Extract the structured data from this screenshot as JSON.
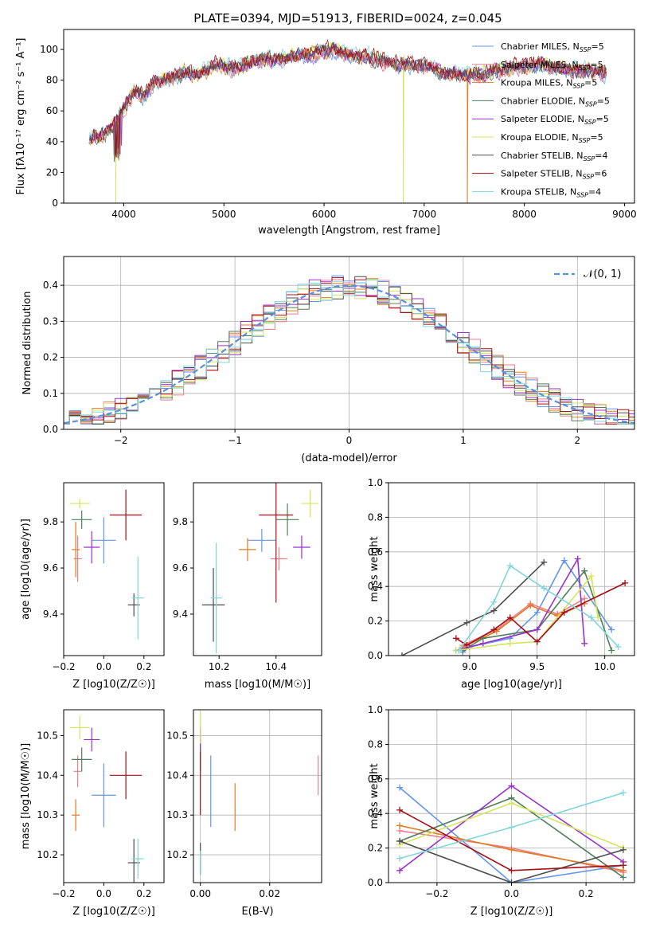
{
  "figure_title": "PLATE=0394, MJD=51913, FIBERID=0024, z=0.045",
  "colors": {
    "Chabrier MILES": "#6495ed",
    "Salpeter MILES": "#ef7d8a",
    "Kroupa MILES": "#e07b25",
    "Chabrier ELODIE": "#4f7f5a",
    "Salpeter ELODIE": "#9932cc",
    "Kroupa ELODIE": "#d6e45c",
    "Chabrier STELIB": "#4d4d4d",
    "Salpeter STELIB": "#a50f15",
    "Kroupa STELIB": "#7fd6dc",
    "normal": "#5b8fd9"
  },
  "chart_data": [
    {
      "id": "spectrum",
      "type": "line",
      "title": "PLATE=0394, MJD=51913, FIBERID=0024, z=0.045",
      "xlabel": "wavelength [Angstrom, rest frame]",
      "ylabel": "Flux [fλ10⁻¹⁷ erg cm⁻² s⁻¹ A⁻¹]",
      "xlim": [
        3400,
        9100
      ],
      "ylim": [
        0,
        113
      ],
      "xticks": [
        4000,
        5000,
        6000,
        7000,
        8000,
        9000
      ],
      "yticks": [
        0,
        20,
        40,
        60,
        80,
        100
      ],
      "legend_position": "upper-right",
      "legend": [
        {
          "name": "Chabrier MILES",
          "nssp": "5"
        },
        {
          "name": "Salpeter MILES",
          "nssp": "5"
        },
        {
          "name": "Kroupa MILES",
          "nssp": "5"
        },
        {
          "name": "Chabrier ELODIE",
          "nssp": "5"
        },
        {
          "name": "Salpeter ELODIE",
          "nssp": "5"
        },
        {
          "name": "Kroupa ELODIE",
          "nssp": "5"
        },
        {
          "name": "Chabrier STELIB",
          "nssp": "4"
        },
        {
          "name": "Salpeter STELIB",
          "nssp": "6"
        },
        {
          "name": "Kroupa STELIB",
          "nssp": "4"
        }
      ],
      "continuum": {
        "x": [
          3650,
          3750,
          3850,
          3950,
          4000,
          4100,
          4200,
          4300,
          4400,
          4500,
          4600,
          4700,
          4800,
          4900,
          5000,
          5100,
          5200,
          5300,
          5400,
          5500,
          5600,
          5700,
          5800,
          5900,
          6000,
          6100,
          6200,
          6300,
          6400,
          6500,
          6600,
          6700,
          6800,
          6900,
          7000,
          7100,
          7200,
          7300,
          7400,
          7500,
          7600,
          7700,
          7800,
          7900,
          8000,
          8100,
          8200,
          8300,
          8400,
          8500,
          8600,
          8700,
          8820
        ],
        "y": [
          44,
          43,
          48,
          55,
          62,
          72,
          70,
          78,
          80,
          82,
          85,
          84,
          85,
          90,
          89,
          88,
          90,
          92,
          94,
          93,
          94,
          96,
          96,
          97,
          99,
          99,
          98,
          96,
          95,
          94,
          92,
          90,
          91,
          89,
          89,
          88,
          84,
          85,
          83,
          84,
          83,
          86,
          87,
          88,
          89,
          90,
          89,
          88,
          88,
          87,
          86,
          86,
          85
        ]
      },
      "dropouts": [
        {
          "x": 3920,
          "series": "Kroupa ELODIE"
        },
        {
          "x": 6790,
          "series": "Kroupa ELODIE"
        },
        {
          "x": 7430,
          "series": "Kroupa MILES"
        }
      ]
    },
    {
      "id": "residuals",
      "type": "histogram",
      "xlabel": "(data-model)/error",
      "ylabel": "Normed distribution",
      "xlim": [
        -2.5,
        2.5
      ],
      "ylim": [
        0,
        0.48
      ],
      "xticks": [
        -2,
        -1,
        0,
        1,
        2
      ],
      "yticks": [
        0.0,
        0.1,
        0.2,
        0.3,
        0.4
      ],
      "grid": true,
      "legend_position": "upper-right",
      "reference_label": "𝒩(0, 1)",
      "bin_width": 0.1
    },
    {
      "id": "age_vs_Z",
      "type": "errorbar",
      "xlabel": "Z [log10(Z/Z☉)]",
      "ylabel": "age  [log10(age/yr)]",
      "xlim": [
        -0.2,
        0.3
      ],
      "ylim": [
        9.22,
        9.97
      ],
      "xticks": [
        -0.2,
        0.0,
        0.2
      ],
      "yticks": [
        9.4,
        9.6,
        9.8
      ],
      "grid": false,
      "points": [
        {
          "series": "Chabrier MILES",
          "x": 0.0,
          "xerr": 0.06,
          "y": 9.72,
          "yerr": 0.1
        },
        {
          "series": "Salpeter MILES",
          "x": -0.13,
          "xerr": 0.02,
          "y": 9.64,
          "yerr": 0.1
        },
        {
          "series": "Kroupa MILES",
          "x": -0.14,
          "xerr": 0.02,
          "y": 9.68,
          "yerr": 0.12
        },
        {
          "series": "Chabrier ELODIE",
          "x": -0.11,
          "xerr": 0.05,
          "y": 9.81,
          "yerr": 0.04
        },
        {
          "series": "Salpeter ELODIE",
          "x": -0.06,
          "xerr": 0.04,
          "y": 9.69,
          "yerr": 0.07
        },
        {
          "series": "Kroupa ELODIE",
          "x": -0.12,
          "xerr": 0.05,
          "y": 9.88,
          "yerr": 0.02
        },
        {
          "series": "Chabrier STELIB",
          "x": 0.15,
          "xerr": 0.03,
          "y": 9.44,
          "yerr": 0.05
        },
        {
          "series": "Salpeter STELIB",
          "x": 0.11,
          "xerr": 0.08,
          "y": 9.83,
          "yerr": 0.11
        },
        {
          "series": "Kroupa STELIB",
          "x": 0.17,
          "xerr": 0.03,
          "y": 9.47,
          "yerr": 0.18
        }
      ]
    },
    {
      "id": "age_vs_mass",
      "type": "errorbar",
      "xlabel": "mass [log10(M/M☉)]",
      "ylabel": "",
      "xlim": [
        10.11,
        10.56
      ],
      "ylim": [
        9.22,
        9.97
      ],
      "xticks": [
        10.2,
        10.4
      ],
      "yticks": [
        9.4,
        9.6,
        9.8
      ],
      "grid": false,
      "points": [
        {
          "series": "Chabrier MILES",
          "x": 10.35,
          "xerr": 0.05,
          "y": 9.72,
          "yerr": 0.05
        },
        {
          "series": "Salpeter MILES",
          "x": 10.41,
          "xerr": 0.03,
          "y": 9.64,
          "yerr": 0.05
        },
        {
          "series": "Kroupa MILES",
          "x": 10.3,
          "xerr": 0.03,
          "y": 9.68,
          "yerr": 0.05
        },
        {
          "series": "Chabrier ELODIE",
          "x": 10.44,
          "xerr": 0.04,
          "y": 9.81,
          "yerr": 0.07
        },
        {
          "series": "Salpeter ELODIE",
          "x": 10.49,
          "xerr": 0.03,
          "y": 9.69,
          "yerr": 0.05
        },
        {
          "series": "Kroupa ELODIE",
          "x": 10.52,
          "xerr": 0.03,
          "y": 9.88,
          "yerr": 0.06
        },
        {
          "series": "Chabrier STELIB",
          "x": 10.18,
          "xerr": 0.04,
          "y": 9.44,
          "yerr": 0.16
        },
        {
          "series": "Salpeter STELIB",
          "x": 10.4,
          "xerr": 0.06,
          "y": 9.83,
          "yerr": 0.38
        },
        {
          "series": "Kroupa STELIB",
          "x": 10.19,
          "xerr": 0.02,
          "y": 9.47,
          "yerr": 0.24
        }
      ]
    },
    {
      "id": "age_weights",
      "type": "line",
      "xlabel": "age  [log10(age/yr)]",
      "ylabel": "mass weight",
      "xlim": [
        8.4,
        10.22
      ],
      "ylim": [
        0,
        1
      ],
      "xticks": [
        9.0,
        9.5,
        10.0
      ],
      "yticks": [
        0.0,
        0.2,
        0.4,
        0.6,
        0.8,
        1.0
      ],
      "grid": true,
      "series": [
        {
          "name": "Chabrier MILES",
          "x": [
            8.95,
            9.0,
            9.3,
            9.5,
            9.7,
            10.05
          ],
          "y": [
            0.02,
            0.05,
            0.1,
            0.25,
            0.55,
            0.15
          ]
        },
        {
          "name": "Salpeter MILES",
          "x": [
            8.95,
            9.2,
            9.45,
            9.65,
            9.85
          ],
          "y": [
            0.06,
            0.15,
            0.3,
            0.24,
            0.33
          ]
        },
        {
          "name": "Kroupa MILES",
          "x": [
            8.95,
            9.2,
            9.45,
            9.65,
            9.85
          ],
          "y": [
            0.05,
            0.14,
            0.29,
            0.23,
            0.3
          ]
        },
        {
          "name": "Chabrier ELODIE",
          "x": [
            8.95,
            9.1,
            9.5,
            9.85,
            10.05
          ],
          "y": [
            0.03,
            0.1,
            0.15,
            0.49,
            0.03
          ]
        },
        {
          "name": "Salpeter ELODIE",
          "x": [
            8.9,
            9.1,
            9.5,
            9.8,
            9.85
          ],
          "y": [
            0.03,
            0.07,
            0.15,
            0.56,
            0.07
          ]
        },
        {
          "name": "Kroupa ELODIE",
          "x": [
            8.9,
            9.3,
            9.5,
            9.9,
            9.95
          ],
          "y": [
            0.03,
            0.07,
            0.08,
            0.46,
            0.22
          ]
        },
        {
          "name": "Chabrier STELIB",
          "x": [
            8.5,
            8.98,
            9.18,
            9.55
          ],
          "y": [
            0.0,
            0.19,
            0.26,
            0.54
          ]
        },
        {
          "name": "Salpeter STELIB",
          "x": [
            8.9,
            8.98,
            9.18,
            9.3,
            9.5,
            9.7,
            10.15
          ],
          "y": [
            0.1,
            0.06,
            0.15,
            0.22,
            0.08,
            0.25,
            0.42
          ]
        },
        {
          "name": "Kroupa STELIB",
          "x": [
            8.92,
            9.18,
            9.3,
            9.55,
            9.9,
            10.1
          ],
          "y": [
            0.03,
            0.31,
            0.52,
            0.39,
            0.22,
            0.05
          ]
        }
      ]
    },
    {
      "id": "mass_vs_Z",
      "type": "errorbar",
      "xlabel": "Z [log10(Z/Z☉)]",
      "ylabel": "mass [log10(M/M☉)]",
      "xlim": [
        -0.2,
        0.3
      ],
      "ylim": [
        10.13,
        10.565
      ],
      "xticks": [
        -0.2,
        0.0,
        0.2
      ],
      "yticks": [
        10.2,
        10.3,
        10.4,
        10.5
      ],
      "grid": false,
      "points": [
        {
          "series": "Chabrier MILES",
          "x": 0.0,
          "xerr": 0.06,
          "y": 10.35,
          "yerr": 0.08
        },
        {
          "series": "Salpeter MILES",
          "x": -0.13,
          "xerr": 0.02,
          "y": 10.41,
          "yerr": 0.04
        },
        {
          "series": "Kroupa MILES",
          "x": -0.14,
          "xerr": 0.02,
          "y": 10.3,
          "yerr": 0.04
        },
        {
          "series": "Chabrier ELODIE",
          "x": -0.11,
          "xerr": 0.05,
          "y": 10.44,
          "yerr": 0.03
        },
        {
          "series": "Salpeter ELODIE",
          "x": -0.06,
          "xerr": 0.04,
          "y": 10.49,
          "yerr": 0.03
        },
        {
          "series": "Kroupa ELODIE",
          "x": -0.12,
          "xerr": 0.05,
          "y": 10.52,
          "yerr": 0.03
        },
        {
          "series": "Chabrier STELIB",
          "x": 0.15,
          "xerr": 0.03,
          "y": 10.18,
          "yerr": 0.06
        },
        {
          "series": "Salpeter STELIB",
          "x": 0.11,
          "xerr": 0.08,
          "y": 10.4,
          "yerr": 0.06
        },
        {
          "series": "Kroupa STELIB",
          "x": 0.17,
          "xerr": 0.03,
          "y": 10.19,
          "yerr": 0.05
        }
      ]
    },
    {
      "id": "mass_vs_ebv",
      "type": "errorbar",
      "xlabel": "E(B-V)",
      "ylabel": "",
      "xlim": [
        -0.002,
        0.035
      ],
      "ylim": [
        10.13,
        10.565
      ],
      "xticks": [
        0.0,
        0.02
      ],
      "yticks": [
        10.2,
        10.3,
        10.4,
        10.5
      ],
      "grid": true,
      "points": [
        {
          "series": "Chabrier MILES",
          "x": 0.003,
          "xerr": 0,
          "y": 10.36,
          "yerr": 0.09
        },
        {
          "series": "Salpeter MILES",
          "x": 0.034,
          "xerr": 0,
          "y": 10.4,
          "yerr": 0.05
        },
        {
          "series": "Kroupa MILES",
          "x": 0.01,
          "xerr": 0,
          "y": 10.32,
          "yerr": 0.06
        },
        {
          "series": "Chabrier ELODIE",
          "x": 0.0,
          "xerr": 0,
          "y": 10.45,
          "yerr": 0.04
        },
        {
          "series": "Salpeter ELODIE",
          "x": 0.0,
          "xerr": 0,
          "y": 10.49,
          "yerr": 0.03
        },
        {
          "series": "Kroupa ELODIE",
          "x": 0.0,
          "xerr": 0,
          "y": 10.52,
          "yerr": 0.04
        },
        {
          "series": "Chabrier STELIB",
          "x": 0.0,
          "xerr": 0,
          "y": 10.19,
          "yerr": 0.04
        },
        {
          "series": "Salpeter STELIB",
          "x": 0.0,
          "xerr": 0,
          "y": 10.38,
          "yerr": 0.08
        },
        {
          "series": "Kroupa STELIB",
          "x": 0.0,
          "xerr": 0,
          "y": 10.18,
          "yerr": 0.03
        }
      ]
    },
    {
      "id": "Z_weights",
      "type": "line",
      "xlabel": "Z [log10(Z/Z☉)]",
      "ylabel": "mass weight",
      "xlim": [
        -0.33,
        0.33
      ],
      "ylim": [
        0,
        1
      ],
      "xticks": [
        -0.2,
        0.0,
        0.2
      ],
      "yticks": [
        0.0,
        0.2,
        0.4,
        0.6,
        0.8,
        1.0
      ],
      "grid": true,
      "series": [
        {
          "name": "Chabrier MILES",
          "x": [
            -0.3,
            0.0,
            0.3
          ],
          "y": [
            0.55,
            0.0,
            0.1
          ]
        },
        {
          "name": "Salpeter MILES",
          "x": [
            -0.3,
            0.0,
            0.3
          ],
          "y": [
            0.3,
            0.2,
            0.06
          ]
        },
        {
          "name": "Kroupa MILES",
          "x": [
            -0.3,
            0.0,
            0.3
          ],
          "y": [
            0.33,
            0.19,
            0.07
          ]
        },
        {
          "name": "Chabrier ELODIE",
          "x": [
            -0.3,
            0.0,
            0.3
          ],
          "y": [
            0.24,
            0.49,
            0.03
          ]
        },
        {
          "name": "Salpeter ELODIE",
          "x": [
            -0.3,
            0.0,
            0.3
          ],
          "y": [
            0.07,
            0.56,
            0.12
          ]
        },
        {
          "name": "Kroupa ELODIE",
          "x": [
            -0.3,
            0.0,
            0.3
          ],
          "y": [
            0.22,
            0.46,
            0.2
          ]
        },
        {
          "name": "Chabrier STELIB",
          "x": [
            -0.3,
            0.0,
            0.3
          ],
          "y": [
            0.24,
            0.0,
            0.19
          ]
        },
        {
          "name": "Salpeter STELIB",
          "x": [
            -0.3,
            0.0,
            0.3
          ],
          "y": [
            0.42,
            0.07,
            0.1
          ]
        },
        {
          "name": "Kroupa STELIB",
          "x": [
            -0.3,
            0.0,
            0.3
          ],
          "y": [
            0.14,
            0.32,
            0.52
          ]
        }
      ]
    }
  ]
}
